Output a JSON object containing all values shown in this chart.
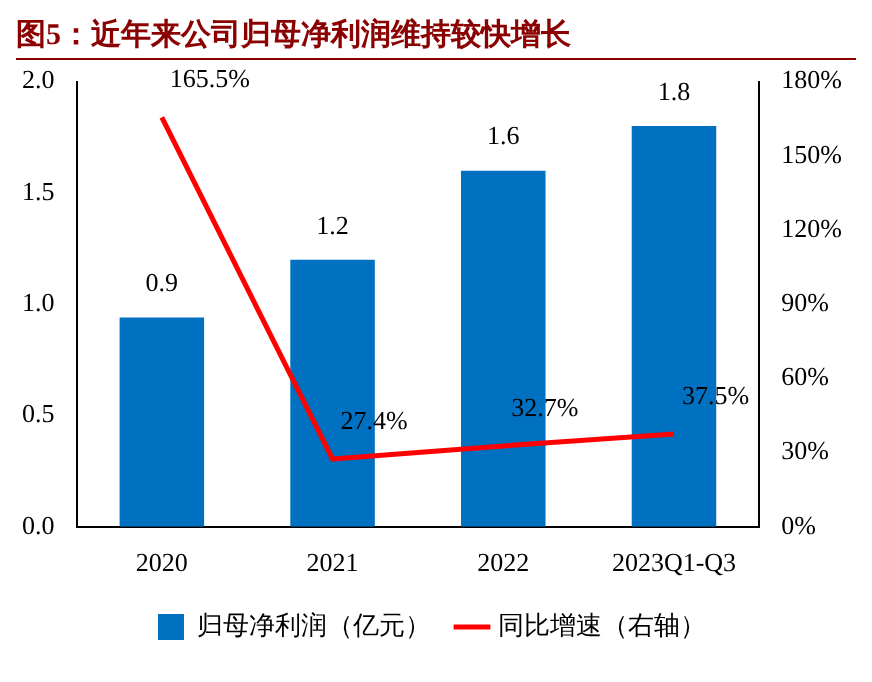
{
  "chart_data": {
    "type": "bar",
    "title": "图5：近年来公司归母净利润维持较快增长",
    "categories": [
      "2020",
      "2021",
      "2022",
      "2023Q1-Q3"
    ],
    "series": [
      {
        "name": "归母净利润（亿元）",
        "color": "#0070c0",
        "values": [
          0.94,
          1.2,
          1.6,
          1.8
        ],
        "value_labels": [
          "0.9",
          "1.2",
          "1.6",
          "1.8"
        ]
      },
      {
        "name": "同比增速（右轴）",
        "type": "line",
        "axis": "y2",
        "color": "#ff0000",
        "values": [
          165.5,
          27.4,
          32.7,
          37.5
        ],
        "value_labels": [
          "165.5%",
          "27.4%",
          "32.7%",
          "37.5%"
        ]
      }
    ],
    "ylim": [
      0,
      2
    ],
    "yticks": [
      {
        "value": 0,
        "label": "0.0"
      },
      {
        "value": 0.5,
        "label": "0.5"
      },
      {
        "value": 1,
        "label": "1.0"
      },
      {
        "value": 1.5,
        "label": "1.5"
      },
      {
        "value": 2,
        "label": "2.0"
      }
    ],
    "y2lim": [
      0,
      180
    ],
    "y2ticks": [
      {
        "value": 0,
        "label": "0%"
      },
      {
        "value": 30,
        "label": "30%"
      },
      {
        "value": 60,
        "label": "60%"
      },
      {
        "value": 90,
        "label": "90%"
      },
      {
        "value": 120,
        "label": "120%"
      },
      {
        "value": 150,
        "label": "150%"
      },
      {
        "value": 180,
        "label": "180%"
      }
    ],
    "legend": "bottom",
    "marker": "none"
  }
}
